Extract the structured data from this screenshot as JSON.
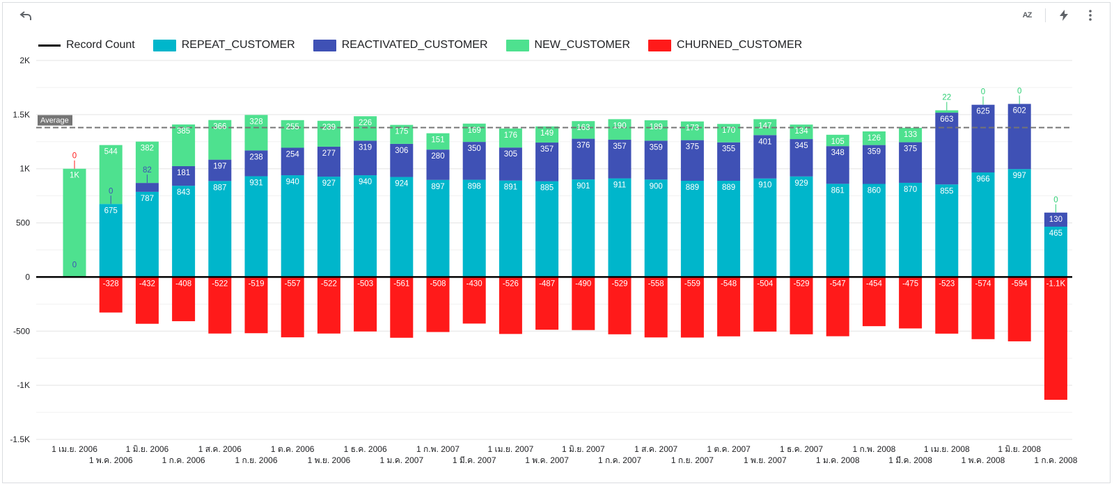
{
  "toolbar": {
    "undo_icon": "undo-icon",
    "sort_icon": "sort-az-icon",
    "sort_label": "AZ",
    "explore_icon": "lightning-icon",
    "more_icon": "more-vert-icon"
  },
  "colors": {
    "repeat": "#00b6cb",
    "reactivated": "#3f51b5",
    "new": "#4ee18f",
    "churned": "#ff1a1a",
    "record_count": "#000000",
    "average_line": "#757575"
  },
  "legend": [
    {
      "key": "record_count",
      "label": "Record Count",
      "kind": "line"
    },
    {
      "key": "repeat",
      "label": "REPEAT_CUSTOMER",
      "kind": "box"
    },
    {
      "key": "reactivated",
      "label": "REACTIVATED_CUSTOMER",
      "kind": "box"
    },
    {
      "key": "new",
      "label": "NEW_CUSTOMER",
      "kind": "box"
    },
    {
      "key": "churned",
      "label": "CHURNED_CUSTOMER",
      "kind": "box"
    }
  ],
  "chart_data": {
    "type": "bar",
    "stacked": true,
    "ylim": [
      -1500,
      2000
    ],
    "yticks": [
      2000,
      1500,
      1000,
      500,
      0,
      -500,
      -1000,
      -1500
    ],
    "ytick_labels": [
      "2K",
      "1.5K",
      "1K",
      "500",
      "0",
      "-500",
      "-1K",
      "-1.5K"
    ],
    "average_label": "Average",
    "average_value": 1380,
    "legend_position": "top-left",
    "grid": true,
    "categories": [
      "1 เม.ย. 2006",
      "1 พ.ค. 2006",
      "1 มิ.ย. 2006",
      "1 ก.ค. 2006",
      "1 ส.ค. 2006",
      "1 ก.ย. 2006",
      "1 ต.ค. 2006",
      "1 พ.ย. 2006",
      "1 ธ.ค. 2006",
      "1 ม.ค. 2007",
      "1 ก.พ. 2007",
      "1 มี.ค. 2007",
      "1 เม.ย. 2007",
      "1 พ.ค. 2007",
      "1 มิ.ย. 2007",
      "1 ก.ค. 2007",
      "1 ส.ค. 2007",
      "1 ก.ย. 2007",
      "1 ต.ค. 2007",
      "1 พ.ย. 2007",
      "1 ธ.ค. 2007",
      "1 ม.ค. 2008",
      "1 ก.พ. 2008",
      "1 มี.ค. 2008",
      "1 เม.ย. 2008",
      "1 พ.ค. 2008",
      "1 มิ.ย. 2008",
      "1 ก.ค. 2008"
    ],
    "series": [
      {
        "name": "REPEAT_CUSTOMER",
        "key": "repeat",
        "values": [
          0,
          675,
          787,
          843,
          887,
          931,
          940,
          927,
          940,
          924,
          897,
          898,
          891,
          885,
          901,
          911,
          900,
          889,
          889,
          910,
          929,
          861,
          860,
          870,
          855,
          966,
          997,
          465
        ],
        "labels": [
          "0",
          "675",
          "787",
          "843",
          "887",
          "931",
          "940",
          "927",
          "940",
          "924",
          "897",
          "898",
          "891",
          "885",
          "901",
          "911",
          "900",
          "889",
          "889",
          "910",
          "929",
          "861",
          "860",
          "870",
          "855",
          "966",
          "997",
          "465"
        ]
      },
      {
        "name": "REACTIVATED_CUSTOMER",
        "key": "reactivated",
        "values": [
          0,
          0,
          82,
          181,
          197,
          238,
          254,
          277,
          319,
          306,
          280,
          350,
          305,
          357,
          376,
          357,
          359,
          375,
          355,
          401,
          345,
          348,
          359,
          375,
          663,
          625,
          602,
          130
        ],
        "labels": [
          "0",
          "0",
          "82",
          "181",
          "197",
          "238",
          "254",
          "277",
          "319",
          "306",
          "280",
          "350",
          "305",
          "357",
          "376",
          "357",
          "359",
          "375",
          "355",
          "401",
          "345",
          "348",
          "359",
          "375",
          "663",
          "625",
          "602",
          "130"
        ]
      },
      {
        "name": "NEW_CUSTOMER",
        "key": "new",
        "values": [
          1000,
          544,
          382,
          385,
          366,
          328,
          255,
          239,
          226,
          175,
          151,
          169,
          176,
          149,
          163,
          190,
          189,
          173,
          170,
          147,
          134,
          105,
          126,
          133,
          22,
          0,
          0,
          0
        ],
        "labels": [
          "1K",
          "544",
          "382",
          "385",
          "366",
          "328",
          "255",
          "239",
          "226",
          "175",
          "151",
          "169",
          "176",
          "149",
          "163",
          "190",
          "189",
          "173",
          "170",
          "147",
          "134",
          "105",
          "126",
          "133",
          "22",
          "0",
          "0",
          "0"
        ]
      },
      {
        "name": "CHURNED_CUSTOMER",
        "key": "churned",
        "values": [
          0,
          -328,
          -432,
          -408,
          -522,
          -519,
          -557,
          -522,
          -503,
          -561,
          -508,
          -430,
          -526,
          -487,
          -490,
          -529,
          -558,
          -559,
          -548,
          -504,
          -529,
          -547,
          -454,
          -475,
          -523,
          -574,
          -594,
          -1134
        ],
        "labels": [
          "0",
          "-328",
          "-432",
          "-408",
          "-522",
          "-519",
          "-557",
          "-522",
          "-503",
          "-561",
          "-508",
          "-430",
          "-526",
          "-487",
          "-490",
          "-529",
          "-558",
          "-559",
          "-548",
          "-504",
          "-529",
          "-547",
          "-454",
          "-475",
          "-523",
          "-574",
          "-594",
          "-1.1K"
        ]
      }
    ]
  }
}
